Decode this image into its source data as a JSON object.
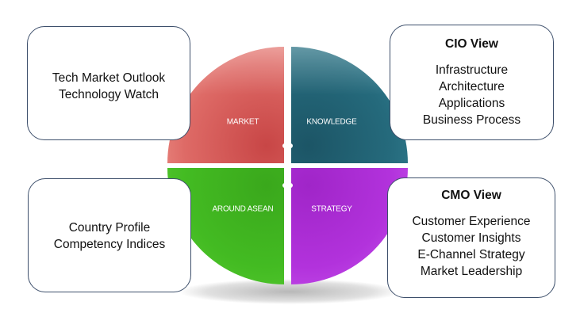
{
  "quadrants": {
    "market": {
      "label": "MARKET",
      "color": "#d65a5a"
    },
    "knowledge": {
      "label": "KNOWLEDGE",
      "color": "#226173"
    },
    "around_asean": {
      "label": "AROUND ASEAN",
      "color": "#3aae1a"
    },
    "strategy": {
      "label": "STRATEGY",
      "color": "#aa2ad0"
    }
  },
  "boxes": {
    "top_left": {
      "lines": [
        "Tech Market Outlook",
        "Technology Watch"
      ]
    },
    "bottom_left": {
      "lines": [
        "Country Profile",
        "Competency Indices"
      ]
    },
    "top_right": {
      "title": "CIO View",
      "lines": [
        "Infrastructure",
        "Architecture",
        "Applications",
        "Business Process"
      ]
    },
    "bottom_right": {
      "title": "CMO View",
      "lines": [
        "Customer Experience",
        "Customer Insights",
        "E-Channel Strategy",
        "Market Leadership"
      ]
    }
  }
}
